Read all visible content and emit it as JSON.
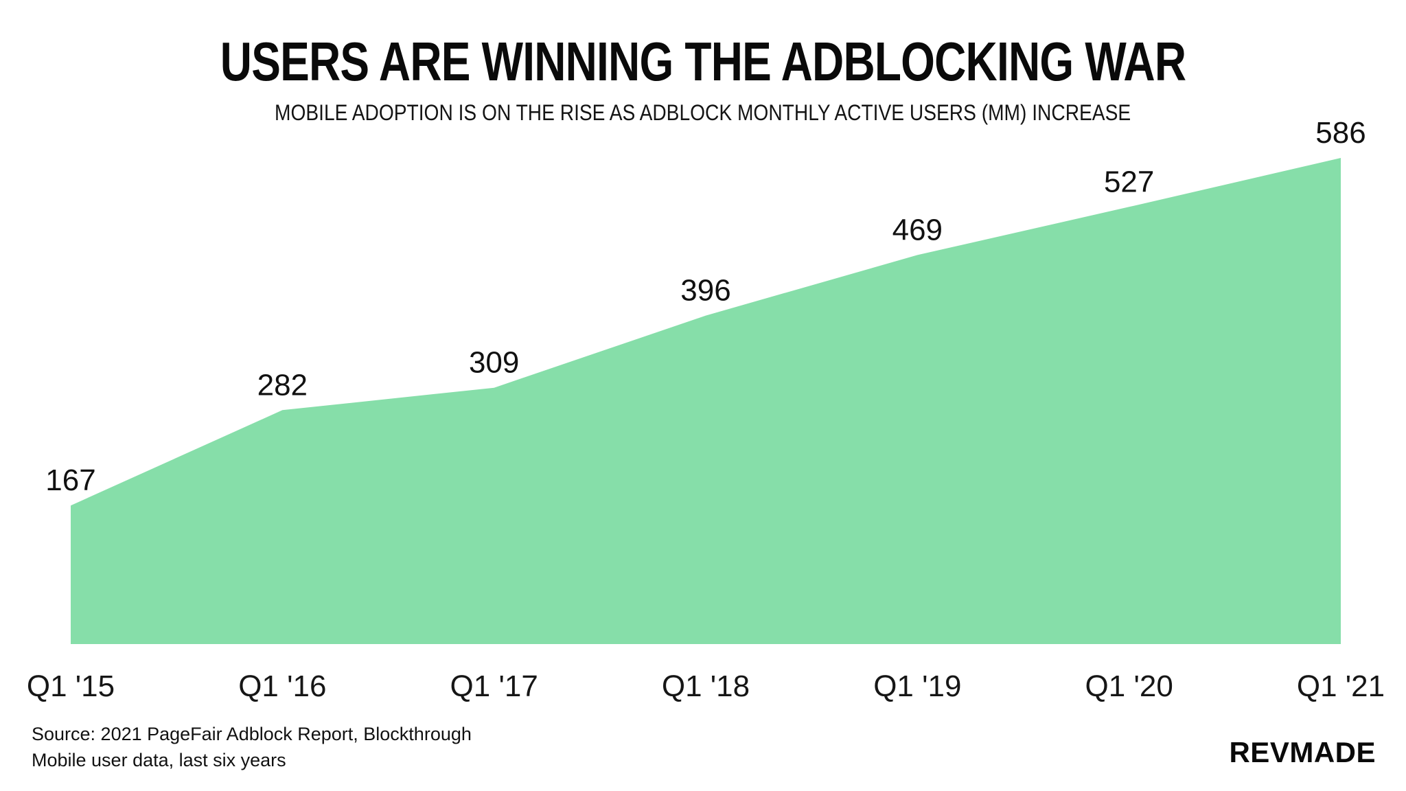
{
  "chart_data": {
    "type": "area",
    "title": "USERS ARE WINNING THE ADBLOCKING WAR",
    "subtitle": "MOBILE ADOPTION IS ON THE RISE AS ADBLOCK MONTHLY ACTIVE USERS (MM) INCREASE",
    "categories": [
      "Q1 '15",
      "Q1 '16",
      "Q1 '17",
      "Q1 '18",
      "Q1 '19",
      "Q1 '20",
      "Q1 '21"
    ],
    "values": [
      167,
      282,
      309,
      396,
      469,
      527,
      586
    ],
    "ylim": [
      0,
      586
    ],
    "grid": false,
    "legend": false,
    "data_labels": true,
    "area_color": "#86DEA9",
    "label_color": "#111111",
    "background_color": "#ffffff"
  },
  "footer": {
    "source_line1": "Source: 2021 PageFair Adblock Report, Blockthrough",
    "source_line2": "Mobile user data, last six years",
    "logo": "REVMADE"
  }
}
